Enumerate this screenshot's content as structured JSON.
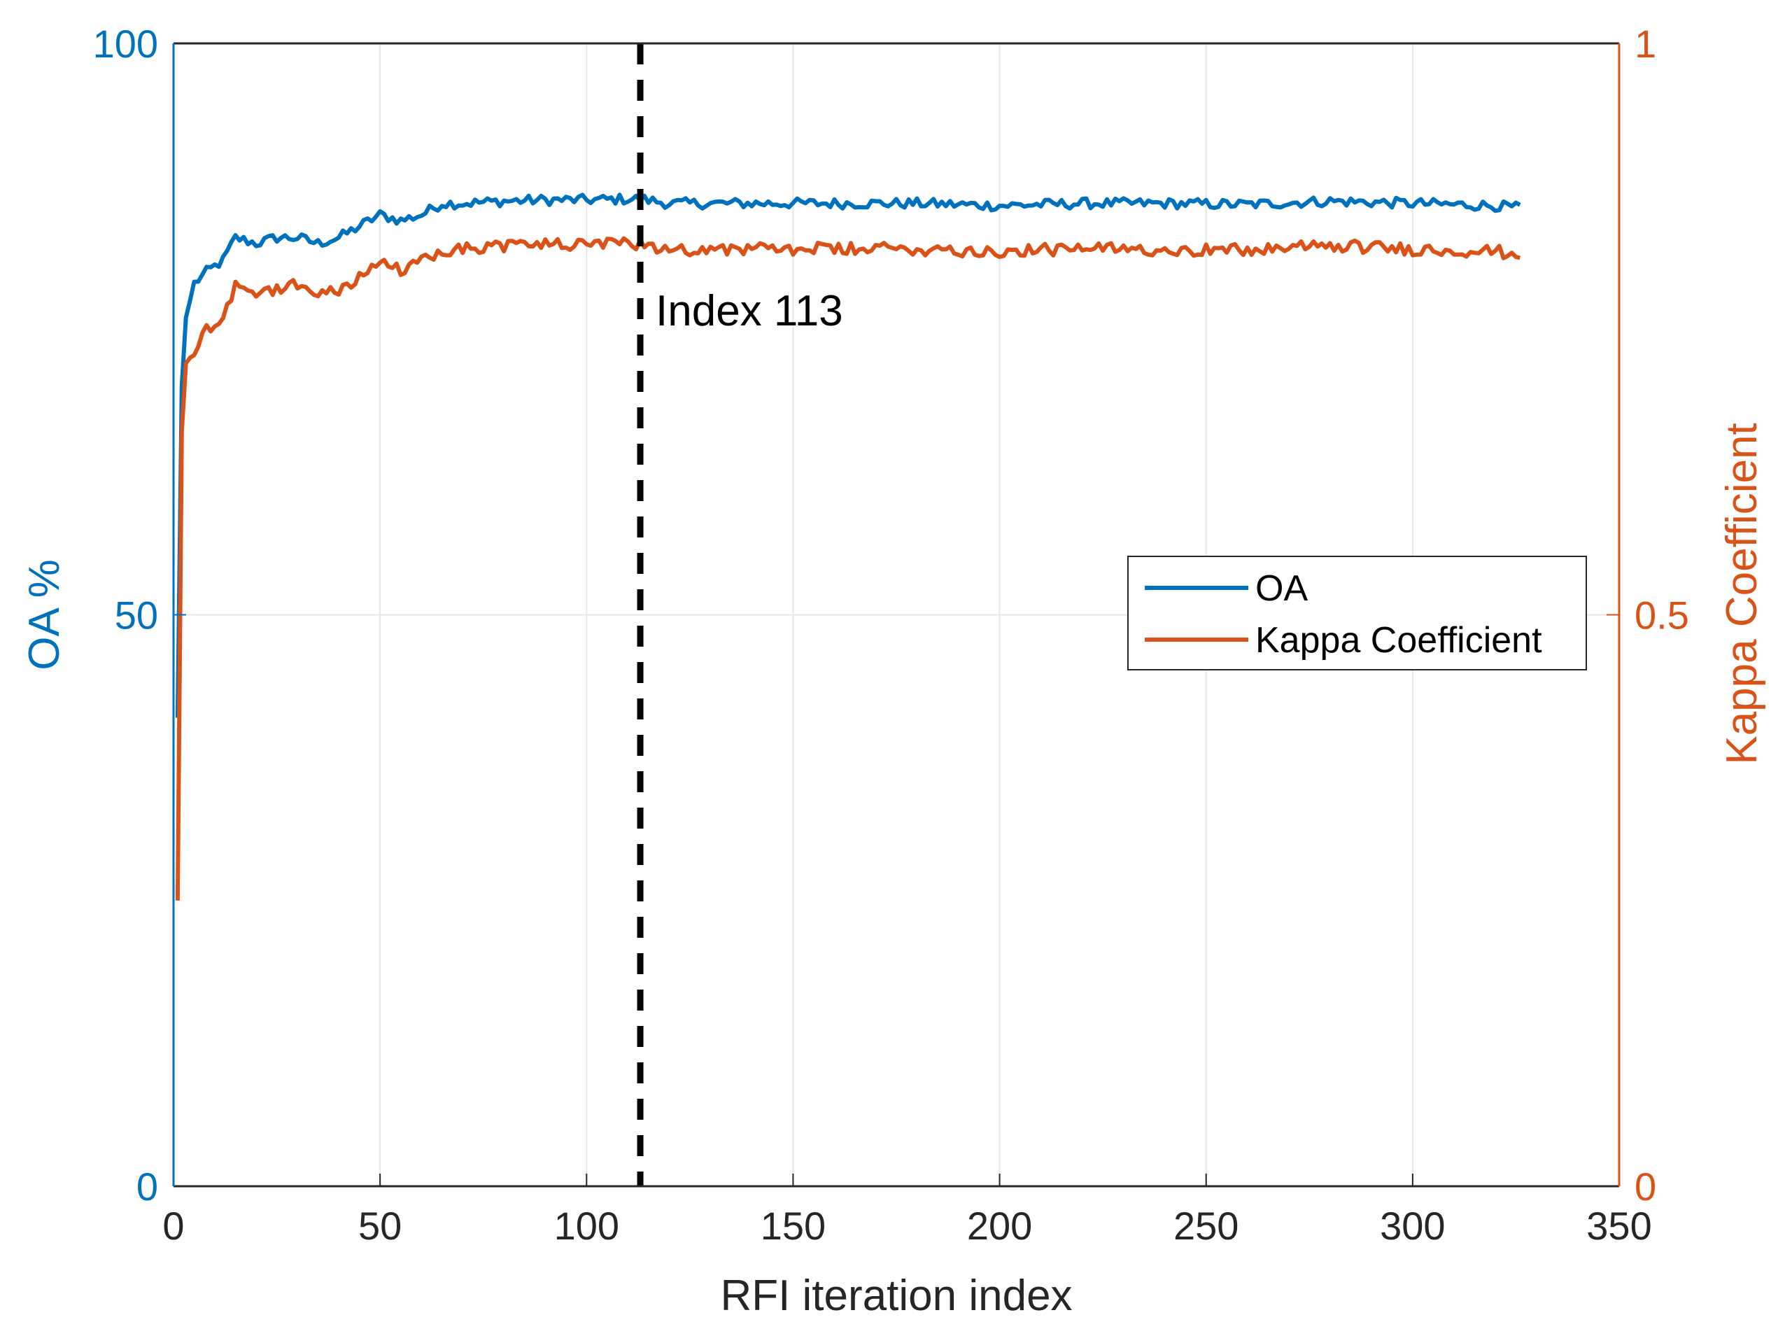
{
  "chart_data": {
    "type": "line",
    "title": "",
    "xlabel": "RFI iteration index",
    "ylabel_left": "OA %",
    "ylabel_right": "Kappa Coefficient",
    "xlim": [
      0,
      350
    ],
    "ylim_left": [
      0,
      100
    ],
    "ylim_right": [
      0,
      1
    ],
    "xticks": [
      "0",
      "50",
      "100",
      "150",
      "200",
      "250",
      "300",
      "350"
    ],
    "yticks_left": [
      "0",
      "50",
      "100"
    ],
    "yticks_right": [
      "0",
      "0.5",
      "1"
    ],
    "grid": true,
    "legend_position": "center-right",
    "colors": {
      "oa": "#0072bd",
      "kappa": "#d95319",
      "marker": "#000000"
    },
    "series": [
      {
        "name": "OA",
        "axis": "left",
        "x": [
          1,
          2,
          3,
          5,
          8,
          12,
          15,
          20,
          25,
          30,
          35,
          40,
          45,
          50,
          55,
          60,
          65,
          70,
          80,
          90,
          100,
          113,
          120,
          140,
          160,
          180,
          200,
          220,
          240,
          260,
          280,
          300,
          320,
          326
        ],
        "values": [
          41,
          70,
          76,
          79,
          80,
          81,
          83,
          82.5,
          83,
          83,
          82.5,
          83,
          84,
          85,
          84.5,
          85,
          86,
          86,
          86.2,
          86.3,
          86.3,
          86.4,
          86,
          86,
          86,
          86,
          85.8,
          86,
          86,
          85.9,
          86.2,
          86,
          85.8,
          85.6
        ]
      },
      {
        "name": "Kappa Coefficient",
        "axis": "right",
        "x": [
          1,
          2,
          3,
          5,
          8,
          12,
          15,
          20,
          25,
          30,
          35,
          40,
          45,
          50,
          55,
          60,
          65,
          70,
          80,
          90,
          100,
          113,
          120,
          140,
          160,
          180,
          200,
          220,
          240,
          260,
          280,
          300,
          320,
          326
        ],
        "values": [
          0.25,
          0.66,
          0.72,
          0.73,
          0.75,
          0.76,
          0.79,
          0.78,
          0.785,
          0.79,
          0.78,
          0.785,
          0.795,
          0.81,
          0.8,
          0.81,
          0.82,
          0.82,
          0.823,
          0.825,
          0.823,
          0.825,
          0.82,
          0.82,
          0.82,
          0.82,
          0.818,
          0.82,
          0.82,
          0.819,
          0.823,
          0.82,
          0.818,
          0.815
        ]
      }
    ],
    "annotations": [
      {
        "type": "vline",
        "x": 113,
        "style": "dashed",
        "label": "Index 113"
      }
    ]
  }
}
